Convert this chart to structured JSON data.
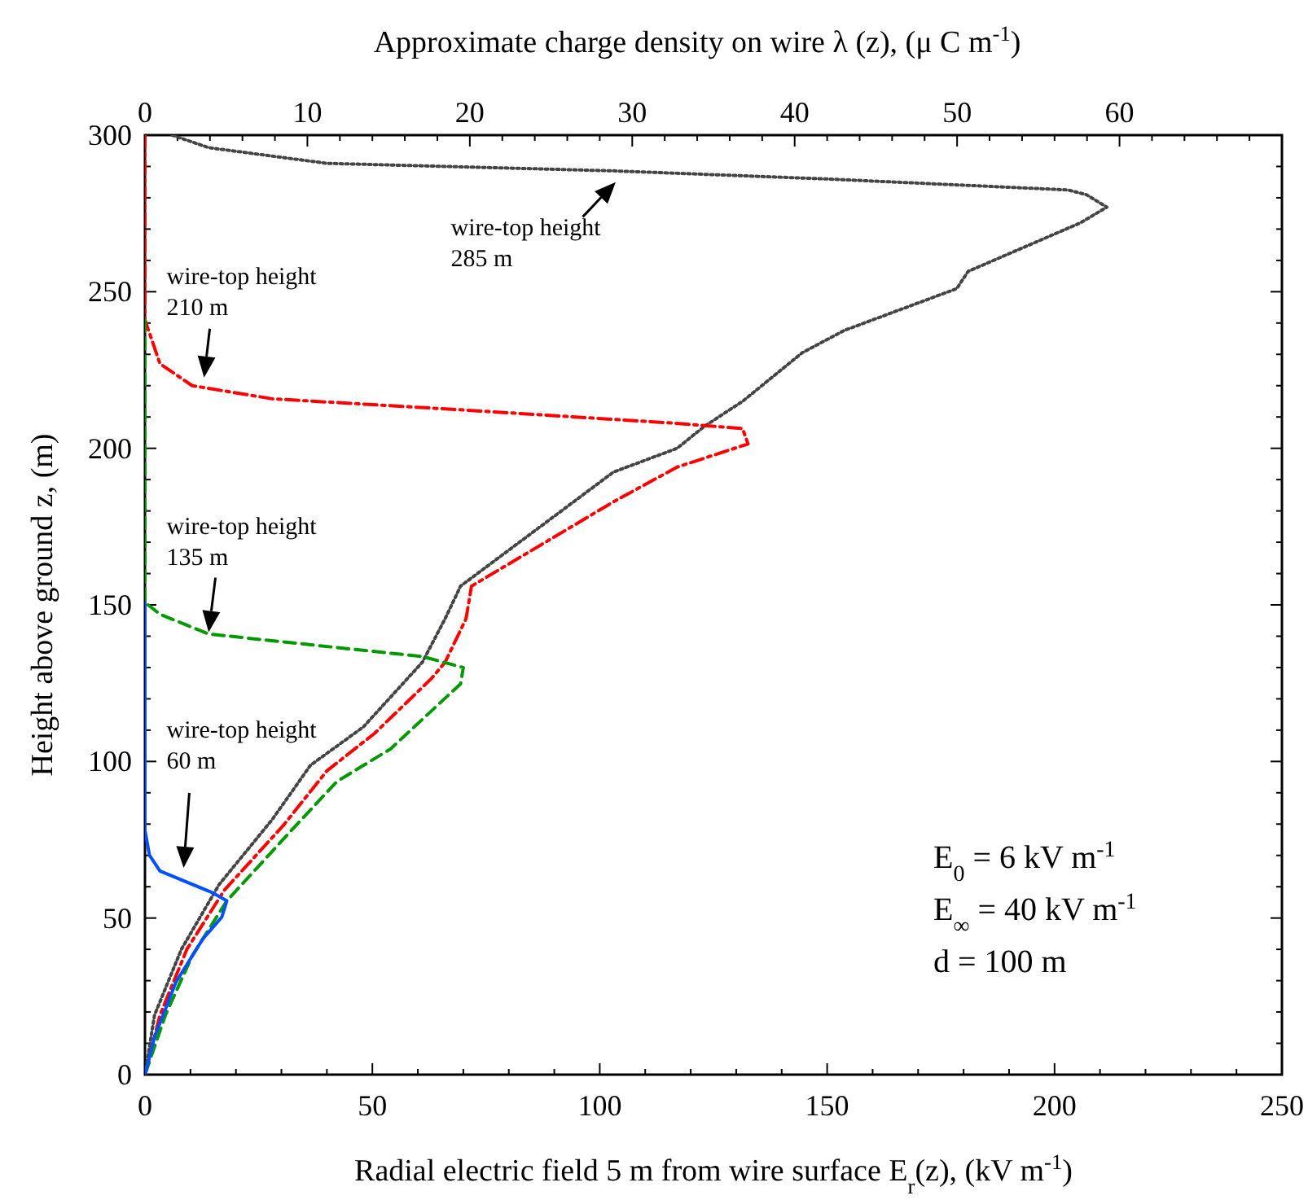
{
  "chart_data": {
    "type": "line",
    "xlabel": "Radial electric field 5 m from wire surface E$_{r}$(z), (kV m$^{-1}$)",
    "x2label": "Approximate charge density on wire λ (z), (μ C m$^{-1}$)",
    "ylabel": "Height above ground z, (m)",
    "xlim": [
      0,
      250
    ],
    "xticks": [
      0,
      {
        "value": 10,
        "label": null
      },
      {
        "value": 20,
        "label": null
      },
      {
        "value": 30,
        "label": null
      },
      {
        "value": 40,
        "label": null
      },
      50,
      {
        "value": 60,
        "label": null
      },
      {
        "value": 70,
        "label": null
      },
      {
        "value": 80,
        "label": null
      },
      {
        "value": 90,
        "label": null
      },
      100,
      {
        "value": 110,
        "label": null
      },
      {
        "value": 120,
        "label": null
      },
      {
        "value": 130,
        "label": null
      },
      {
        "value": 140,
        "label": null
      },
      150,
      {
        "value": 160,
        "label": null
      },
      {
        "value": 170,
        "label": null
      },
      {
        "value": 180,
        "label": null
      },
      {
        "value": 190,
        "label": null
      },
      200,
      {
        "value": 210,
        "label": null
      },
      {
        "value": 220,
        "label": null
      },
      {
        "value": 230,
        "label": null
      },
      {
        "value": 240,
        "label": null
      },
      250
    ],
    "x2lim": [
      0,
      70
    ],
    "x2ticks": [
      0,
      {
        "value": 2,
        "label": null
      },
      {
        "value": 4,
        "label": null
      },
      {
        "value": 6,
        "label": null
      },
      {
        "value": 8,
        "label": null
      },
      10,
      {
        "value": 12,
        "label": null
      },
      {
        "value": 14,
        "label": null
      },
      {
        "value": 16,
        "label": null
      },
      {
        "value": 18,
        "label": null
      },
      20,
      {
        "value": 22,
        "label": null
      },
      {
        "value": 24,
        "label": null
      },
      {
        "value": 26,
        "label": null
      },
      {
        "value": 28,
        "label": null
      },
      30,
      {
        "value": 32,
        "label": null
      },
      {
        "value": 34,
        "label": null
      },
      {
        "value": 36,
        "label": null
      },
      {
        "value": 38,
        "label": null
      },
      40,
      {
        "value": 42,
        "label": null
      },
      {
        "value": 44,
        "label": null
      },
      {
        "value": 46,
        "label": null
      },
      {
        "value": 48,
        "label": null
      },
      50,
      {
        "value": 52,
        "label": null
      },
      {
        "value": 54,
        "label": null
      },
      {
        "value": 56,
        "label": null
      },
      {
        "value": 58,
        "label": null
      },
      60,
      {
        "value": 62,
        "label": null
      },
      {
        "value": 64,
        "label": null
      },
      {
        "value": 66,
        "label": null
      },
      {
        "value": 68,
        "label": null
      }
    ],
    "ylim": [
      0,
      300
    ],
    "yticks": [
      0,
      {
        "value": 10,
        "label": null
      },
      {
        "value": 20,
        "label": null
      },
      {
        "value": 30,
        "label": null
      },
      {
        "value": 40,
        "label": null
      },
      50,
      {
        "value": 60,
        "label": null
      },
      {
        "value": 70,
        "label": null
      },
      {
        "value": 80,
        "label": null
      },
      {
        "value": 90,
        "label": null
      },
      100,
      {
        "value": 110,
        "label": null
      },
      {
        "value": 120,
        "label": null
      },
      {
        "value": 130,
        "label": null
      },
      {
        "value": 140,
        "label": null
      },
      150,
      {
        "value": 160,
        "label": null
      },
      {
        "value": 170,
        "label": null
      },
      {
        "value": 180,
        "label": null
      },
      {
        "value": 190,
        "label": null
      },
      200,
      {
        "value": 210,
        "label": null
      },
      {
        "value": 220,
        "label": null
      },
      {
        "value": 230,
        "label": null
      },
      {
        "value": 240,
        "label": null
      },
      250,
      {
        "value": 260,
        "label": null
      },
      {
        "value": 270,
        "label": null
      },
      {
        "value": 280,
        "label": null
      },
      {
        "value": 290,
        "label": null
      },
      300
    ],
    "grid": false,
    "marker": "none",
    "series": [
      {
        "color": "#444444",
        "line_style": "dotted",
        "x": [
          6,
          14,
          40,
          103,
          150,
          203,
          207,
          211.5,
          205.7,
          181,
          178.5,
          153.7,
          144.5,
          131.4,
          123,
          117,
          103,
          69.4,
          66,
          61,
          48,
          36.4,
          28,
          16.3,
          8,
          2.1,
          0
        ],
        "values": [
          300,
          296,
          291,
          288.6,
          286,
          282.5,
          281,
          277,
          272,
          256.5,
          251,
          237.6,
          230.5,
          215,
          207,
          200,
          192.4,
          156,
          145.6,
          131.7,
          111,
          98.8,
          81.5,
          60.7,
          40,
          19,
          0
        ]
      },
      {
        "color": "#ff0000",
        "line_style": "dashdot",
        "x": [
          0,
          0,
          3.3,
          10.4,
          28,
          69.4,
          116.5,
          131.4,
          132.6,
          117,
          103,
          71.8,
          70.6,
          66,
          63,
          50.5,
          40,
          30.5,
          17.5,
          9.2,
          3.3,
          0
        ],
        "values": [
          300,
          241,
          227,
          220,
          215.8,
          212.3,
          208,
          206.3,
          201.4,
          194,
          182.9,
          156,
          145.6,
          131.7,
          126.5,
          109,
          97,
          79.7,
          59,
          40,
          19,
          0
        ]
      },
      {
        "color": "#009900",
        "line_style": "dashed",
        "x": [
          0,
          0,
          0,
          3.3,
          14,
          61,
          70,
          69.4,
          54,
          42.2,
          32.2,
          18,
          10.4,
          4.5,
          0
        ],
        "values": [
          241,
          150.8,
          150.8,
          147,
          140.7,
          133.5,
          130,
          124.8,
          104,
          93.6,
          78,
          55.5,
          38,
          19,
          0
        ]
      },
      {
        "color": "#0050ff",
        "line_style": "solid",
        "x": [
          0,
          0,
          1,
          3.3,
          15,
          18,
          16.9,
          12.7,
          6.8,
          2.1,
          0
        ],
        "values": [
          150.8,
          78,
          70,
          65,
          58,
          55.5,
          50.3,
          43.3,
          29.5,
          12,
          0
        ]
      }
    ],
    "annotations": [
      "wire-top height\n285 m",
      "wire-top height\n210 m",
      "wire-top height\n135 m",
      "wire-top height\n60 m",
      "E$_{0}$ = 6 kV m$^{-1}$",
      "E$_{∞}$ = 40 kV m$^{-1}$",
      "d = 100 m"
    ]
  }
}
